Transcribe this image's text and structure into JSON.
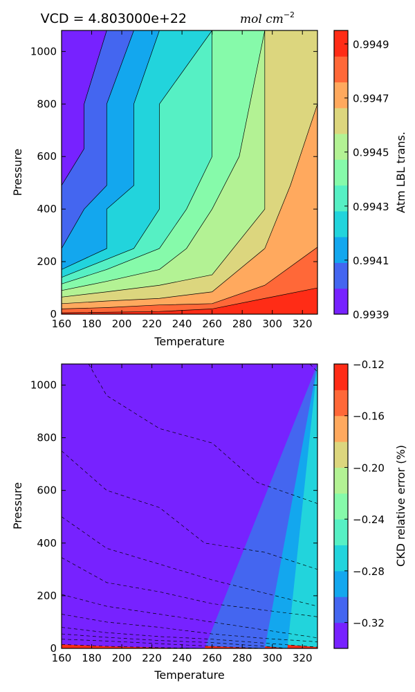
{
  "figure": {
    "top_title_prefix": "VCD = 4.803000e+22",
    "top_title_math": "mol cm",
    "top_title_exp": "−2"
  },
  "chart_data": [
    {
      "type": "heatmap",
      "subtype": "filled-contour",
      "title": "VCD = 4.803000e+22 mol cm−2",
      "xlabel": "Temperature",
      "ylabel": "Pressure",
      "xlim": [
        160,
        330
      ],
      "ylim": [
        0,
        1080
      ],
      "x_ticks": [
        "160",
        "180",
        "200",
        "220",
        "240",
        "260",
        "280",
        "300",
        "320"
      ],
      "y_ticks": [
        "0",
        "200",
        "400",
        "600",
        "800",
        "1000"
      ],
      "colorbar_label": "Atm LBL trans.",
      "colorbar_ticks": [
        "0.9939",
        "0.9941",
        "0.9943",
        "0.9945",
        "0.9947",
        "0.9949"
      ],
      "levels": [
        0.9939,
        0.99395,
        0.994,
        0.99405,
        0.9941,
        0.99415,
        0.9942,
        0.99425,
        0.9943,
        0.99435,
        0.9944,
        0.99445,
        0.9945,
        0.99455,
        0.9946,
        0.99465,
        0.9947,
        0.99475,
        0.9948,
        0.99485,
        0.9949,
        0.99495
      ],
      "contour_lines": "solid",
      "band_colors": [
        "#7722ff",
        "#4466f0",
        "#13a7ee",
        "#22d4dc",
        "#56f0c4",
        "#86faaa",
        "#b3f294",
        "#dcd67e",
        "#ffa95e",
        "#ff6838",
        "#ff2c16"
      ],
      "contour_boundaries": [
        {
          "level": 0.994,
          "points": [
            [
              160,
              490
            ],
            [
              175,
              630
            ],
            [
              175,
              800
            ],
            [
              190,
              1080
            ]
          ]
        },
        {
          "level": 0.9941,
          "points": [
            [
              160,
              250
            ],
            [
              175,
              400
            ],
            [
              190,
              490
            ],
            [
              190,
              800
            ],
            [
              208,
              1080
            ]
          ]
        },
        {
          "level": 0.9942,
          "points": [
            [
              160,
              170
            ],
            [
              190,
              250
            ],
            [
              190,
              400
            ],
            [
              208,
              490
            ],
            [
              208,
              800
            ],
            [
              225,
              1080
            ]
          ]
        },
        {
          "level": 0.9943,
          "points": [
            [
              160,
              140
            ],
            [
              208,
              250
            ],
            [
              225,
              400
            ],
            [
              225,
              800
            ],
            [
              260,
              1080
            ]
          ]
        },
        {
          "level": 0.9944,
          "points": [
            [
              160,
              115
            ],
            [
              190,
              170
            ],
            [
              225,
              250
            ],
            [
              243,
              400
            ],
            [
              260,
              600
            ],
            [
              260,
              1080
            ]
          ]
        },
        {
          "level": 0.9945,
          "points": [
            [
              160,
              90
            ],
            [
              190,
              125
            ],
            [
              225,
              170
            ],
            [
              243,
              250
            ],
            [
              260,
              400
            ],
            [
              278,
              600
            ],
            [
              295,
              1080
            ]
          ]
        },
        {
          "level": 0.9946,
          "points": [
            [
              160,
              65
            ],
            [
              190,
              85
            ],
            [
              225,
              110
            ],
            [
              260,
              150
            ],
            [
              295,
              400
            ],
            [
              295,
              1080
            ]
          ]
        },
        {
          "level": 0.9947,
          "points": [
            [
              160,
              40
            ],
            [
              190,
              50
            ],
            [
              225,
              60
            ],
            [
              260,
              85
            ],
            [
              295,
              250
            ],
            [
              312,
              490
            ],
            [
              330,
              800
            ],
            [
              330,
              1080
            ]
          ]
        },
        {
          "level": 0.9948,
          "points": [
            [
              160,
              20
            ],
            [
              190,
              25
            ],
            [
              225,
              35
            ],
            [
              260,
              40
            ],
            [
              295,
              110
            ],
            [
              330,
              255
            ]
          ]
        },
        {
          "level": 0.9949,
          "points": [
            [
              160,
              5
            ],
            [
              225,
              10
            ],
            [
              260,
              20
            ],
            [
              295,
              60
            ],
            [
              330,
              100
            ]
          ]
        }
      ]
    },
    {
      "type": "heatmap",
      "subtype": "filled-contour",
      "title": "",
      "xlabel": "Temperature",
      "ylabel": "Pressure",
      "xlim": [
        160,
        330
      ],
      "ylim": [
        0,
        1080
      ],
      "x_ticks": [
        "160",
        "180",
        "200",
        "220",
        "240",
        "260",
        "280",
        "300",
        "320"
      ],
      "y_ticks": [
        "0",
        "200",
        "400",
        "600",
        "800",
        "1000"
      ],
      "colorbar_label": "CKD relative error (%)",
      "colorbar_ticks": [
        "−0.32",
        "−0.28",
        "−0.24",
        "−0.20",
        "−0.16",
        "−0.12"
      ],
      "levels": [
        -0.34,
        -0.32,
        -0.3,
        -0.28,
        -0.26,
        -0.24,
        -0.22,
        -0.2,
        -0.18,
        -0.16,
        -0.14,
        -0.12
      ],
      "contour_lines": "dashed",
      "band_colors": [
        "#7722ff",
        "#4466f0",
        "#13a7ee",
        "#22d4dc",
        "#56f0c4",
        "#86faaa",
        "#b3f294",
        "#dcd67e",
        "#ffa95e",
        "#ff6838",
        "#ff2c16"
      ],
      "contour_boundaries": [
        {
          "level": -0.32,
          "points": [
            [
              160,
              15
            ],
            [
              190,
              8
            ],
            [
              225,
              3
            ],
            [
              255,
              0
            ]
          ]
        },
        {
          "level": -0.3,
          "points": [
            [
              160,
              35
            ],
            [
              190,
              28
            ],
            [
              225,
              18
            ],
            [
              260,
              8
            ],
            [
              295,
              0
            ]
          ]
        },
        {
          "level": -0.28,
          "points": [
            [
              160,
              55
            ],
            [
              190,
              42
            ],
            [
              225,
              30
            ],
            [
              260,
              22
            ],
            [
              295,
              8
            ],
            [
              310,
              0
            ]
          ]
        },
        {
          "level": -0.26,
          "points": [
            [
              160,
              80
            ],
            [
              190,
              60
            ],
            [
              225,
              45
            ],
            [
              260,
              35
            ],
            [
              295,
              20
            ],
            [
              330,
              5
            ]
          ]
        },
        {
          "level": -0.24,
          "points": [
            [
              160,
              130
            ],
            [
              190,
              100
            ],
            [
              225,
              80
            ],
            [
              260,
              55
            ],
            [
              295,
              38
            ],
            [
              330,
              25
            ]
          ]
        },
        {
          "level": -0.22,
          "points": [
            [
              160,
              205
            ],
            [
              190,
              160
            ],
            [
              225,
              130
            ],
            [
              260,
              100
            ],
            [
              295,
              70
            ],
            [
              330,
              40
            ]
          ]
        },
        {
          "level": -0.2,
          "points": [
            [
              160,
              345
            ],
            [
              190,
              250
            ],
            [
              225,
              215
            ],
            [
              260,
              170
            ],
            [
              295,
              145
            ],
            [
              330,
              120
            ]
          ]
        },
        {
          "level": -0.18,
          "points": [
            [
              160,
              500
            ],
            [
              190,
              380
            ],
            [
              225,
              320
            ],
            [
              260,
              260
            ],
            [
              295,
              210
            ],
            [
              330,
              160
            ]
          ]
        },
        {
          "level": -0.16,
          "points": [
            [
              160,
              750
            ],
            [
              190,
              600
            ],
            [
              225,
              535
            ],
            [
              255,
              400
            ],
            [
              295,
              365
            ],
            [
              330,
              300
            ]
          ]
        },
        {
          "level": -0.14,
          "points": [
            [
              178,
              1080
            ],
            [
              190,
              960
            ],
            [
              225,
              835
            ],
            [
              260,
              780
            ],
            [
              290,
              630
            ],
            [
              330,
              550
            ]
          ]
        },
        {
          "level": -0.12,
          "points": [
            [
              325,
              1080
            ],
            [
              330,
              1050
            ]
          ]
        }
      ]
    }
  ]
}
